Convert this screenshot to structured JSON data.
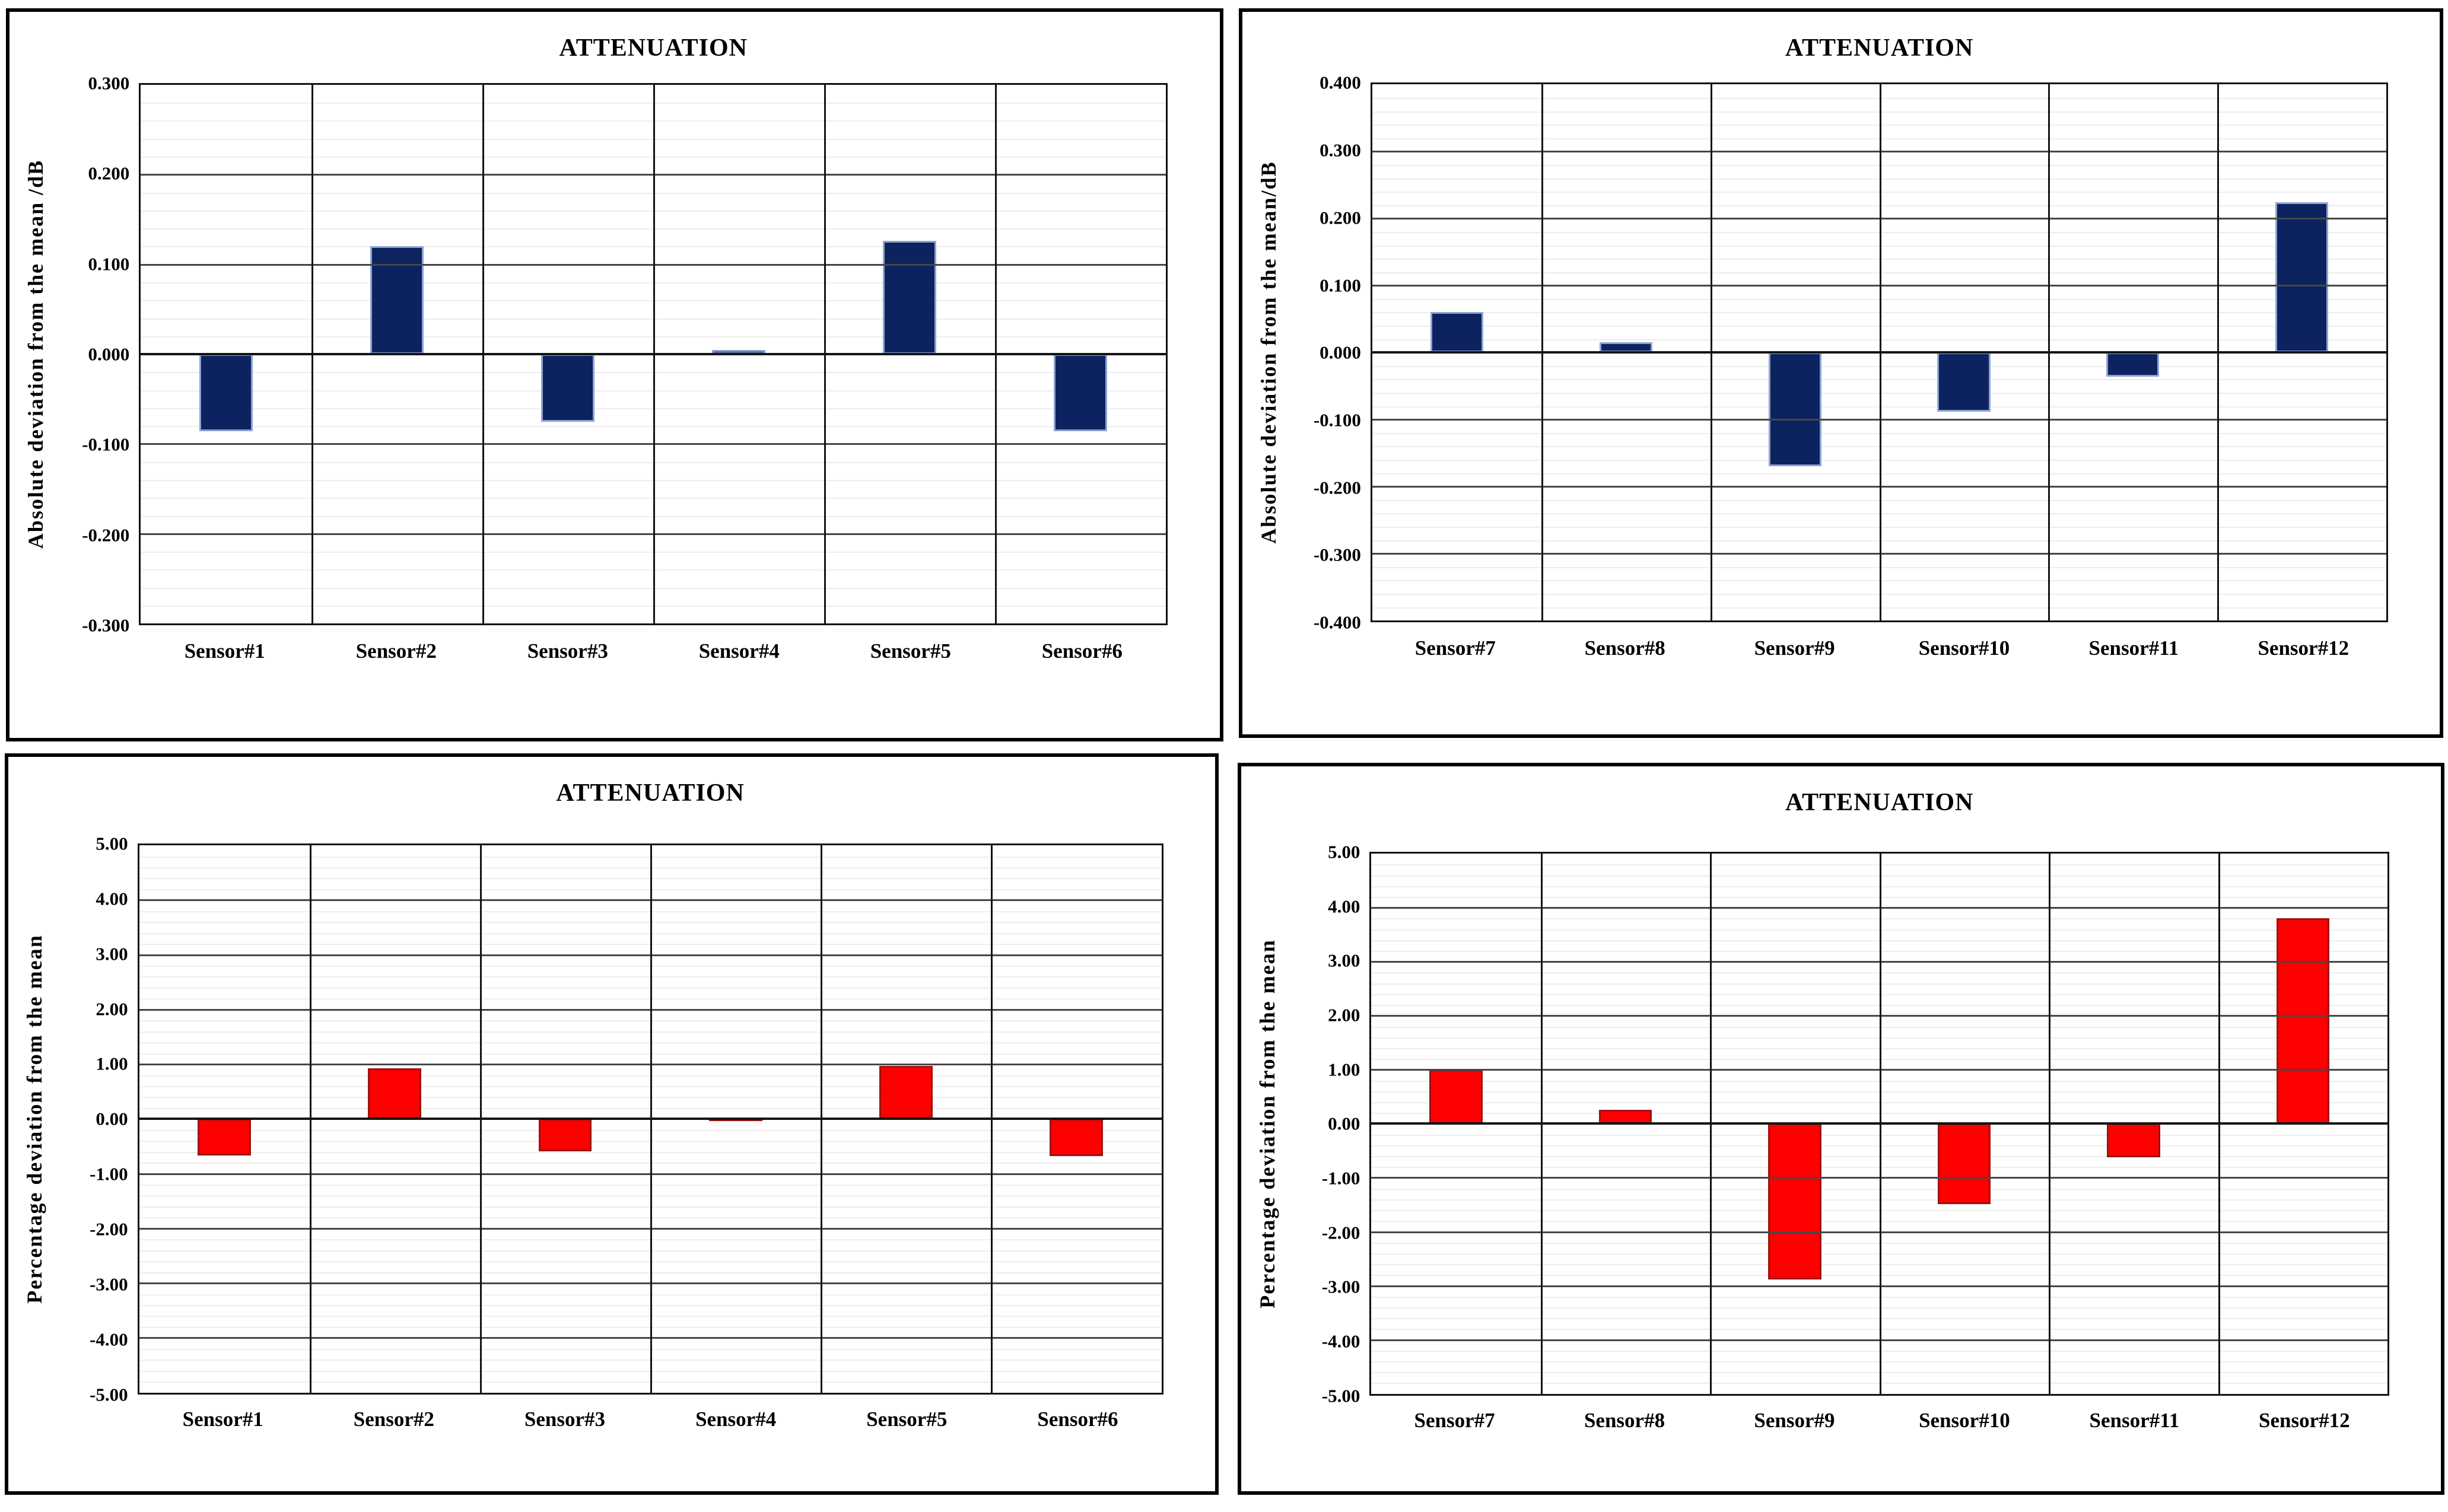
{
  "chart_data": [
    {
      "type": "bar",
      "title": "ATTENUATION",
      "ylabel": "Absolute deviation from the mean /dB",
      "xlabel": "",
      "categories": [
        "Sensor#1",
        "Sensor#2",
        "Sensor#3",
        "Sensor#4",
        "Sensor#5",
        "Sensor#6"
      ],
      "values": [
        -0.086,
        0.12,
        -0.075,
        0.005,
        0.126,
        -0.086
      ],
      "ylim": [
        -0.3,
        0.3
      ],
      "y_tick_step": 0.1,
      "y_tick_decimals": 3,
      "minor_gridlines_per_major": 5,
      "grid": "on",
      "legend": "none",
      "bar_color": "#0d2360",
      "bar_border_color": "#8ea3cf"
    },
    {
      "type": "bar",
      "title": "ATTENUATION",
      "ylabel": "Absolute deviation from the mean/dB",
      "xlabel": "",
      "categories": [
        "Sensor#7",
        "Sensor#8",
        "Sensor#9",
        "Sensor#10",
        "Sensor#11",
        "Sensor#12"
      ],
      "values": [
        0.06,
        0.015,
        -0.17,
        -0.088,
        -0.036,
        0.224
      ],
      "ylim": [
        -0.4,
        0.4
      ],
      "y_tick_step": 0.1,
      "y_tick_decimals": 3,
      "minor_gridlines_per_major": 5,
      "grid": "on",
      "legend": "none",
      "bar_color": "#0d2360",
      "bar_border_color": "#8ea3cf"
    },
    {
      "type": "bar",
      "title": "ATTENUATION",
      "ylabel": "Percentage deviation from the mean",
      "xlabel": "",
      "categories": [
        "Sensor#1",
        "Sensor#2",
        "Sensor#3",
        "Sensor#4",
        "Sensor#5",
        "Sensor#6"
      ],
      "values": [
        -0.67,
        0.92,
        -0.59,
        0.03,
        0.97,
        -0.68
      ],
      "ylim": [
        -5.0,
        5.0
      ],
      "y_tick_step": 1.0,
      "y_tick_decimals": 2,
      "minor_gridlines_per_major": 5,
      "grid": "on",
      "legend": "none",
      "bar_color": "#ff0000",
      "bar_border_color": "#9c1313"
    },
    {
      "type": "bar",
      "title": "ATTENUATION",
      "ylabel": "Percentage deviation from the mean",
      "xlabel": "",
      "categories": [
        "Sensor#7",
        "Sensor#8",
        "Sensor#9",
        "Sensor#10",
        "Sensor#11",
        "Sensor#12"
      ],
      "values": [
        1.0,
        0.26,
        -2.88,
        -1.49,
        -0.62,
        3.81
      ],
      "ylim": [
        -5.0,
        5.0
      ],
      "y_tick_step": 1.0,
      "y_tick_decimals": 2,
      "minor_gridlines_per_major": 5,
      "grid": "on",
      "legend": "none",
      "bar_color": "#ff0000",
      "bar_border_color": "#9c1313"
    }
  ]
}
